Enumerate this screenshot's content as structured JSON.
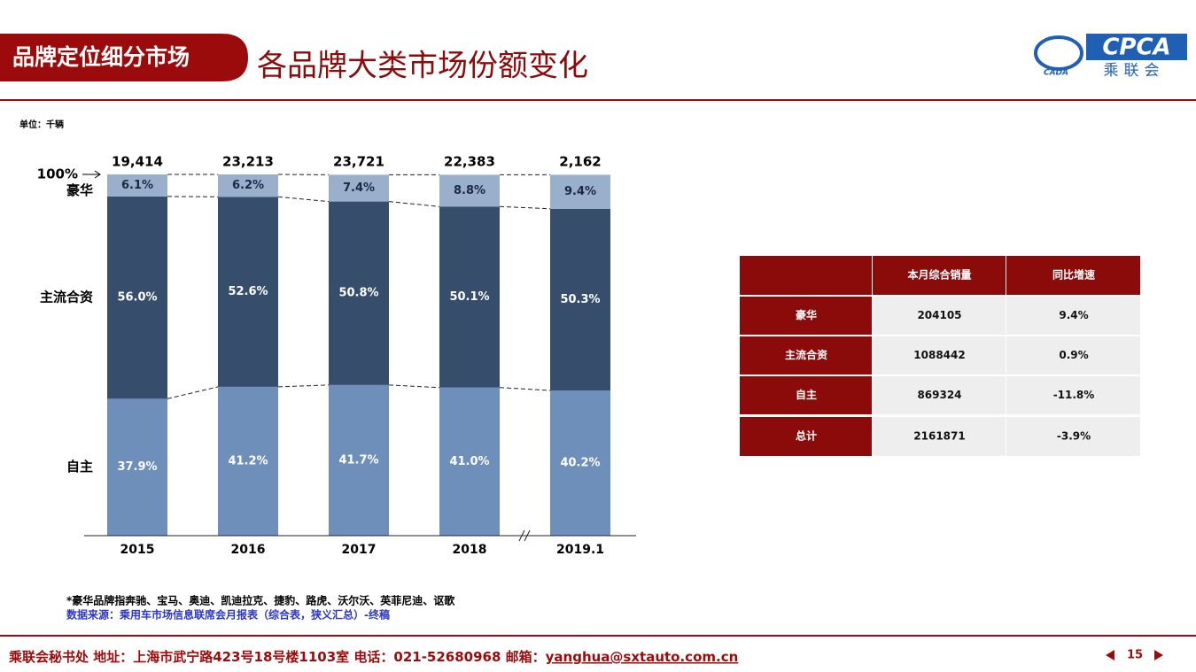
{
  "header": {
    "tag": "品牌定位细分市场",
    "title": "各品牌大类市场份额变化",
    "logo": {
      "mark": "CADA",
      "name": "CPCA",
      "cn": "乘联会"
    }
  },
  "unit": "单位：千辆",
  "chart_data": {
    "type": "stacked-bar",
    "categories": [
      "2015",
      "2016",
      "2017",
      "2018",
      "2019.1"
    ],
    "series": [
      {
        "name": "自主",
        "color": "#6f8fbb",
        "values": [
          37.9,
          41.2,
          41.7,
          41.0,
          40.2
        ],
        "value_labels": [
          "37.9%",
          "41.2%",
          "41.7%",
          "41.0%",
          "40.2%"
        ]
      },
      {
        "name": "主流合资",
        "color": "#364d6c",
        "values": [
          56.0,
          52.6,
          50.8,
          50.1,
          50.3
        ],
        "value_labels": [
          "56.0%",
          "52.6%",
          "50.8%",
          "50.1%",
          "50.3%"
        ]
      },
      {
        "name": "豪华",
        "color": "#9aafcc",
        "values": [
          6.1,
          6.2,
          7.4,
          8.8,
          9.4
        ],
        "value_labels": [
          "6.1%",
          "6.2%",
          "7.4%",
          "8.8%",
          "9.4%"
        ]
      }
    ],
    "totals": {
      "values": [
        19414,
        23213,
        23721,
        22383,
        2162
      ],
      "value_labels": [
        "19,414",
        "23,213",
        "23,721",
        "22,383",
        "2,162"
      ]
    },
    "ylim": [
      0,
      100
    ],
    "yticks": [
      {
        "value": 100,
        "label": "100%"
      }
    ]
  },
  "table": {
    "header": [
      "本月综合销量",
      "同比增速"
    ],
    "rows": [
      [
        "豪华",
        "204105",
        "9.4%"
      ],
      [
        "主流合资",
        "1088442",
        "0.9%"
      ],
      [
        "自主",
        "869324",
        "-11.8%"
      ],
      [
        "总计",
        "2161871",
        "-3.9%"
      ]
    ]
  },
  "notes": [
    "*豪华品牌指奔驰、宝马、奥迪、凯迪拉克、捷豹、路虎、沃尔沃、英菲尼迪、讴歌",
    "数据来源：乘用车市场信息联席会月报表（综合表，狭义汇总）-终稿"
  ],
  "footer": {
    "text": "乘联会秘书处   地址：上海市武宁路423号18号楼1103室  电话：021-52680968   邮箱：",
    "email": "yanghua@sxtauto.com.cn",
    "page": "15"
  }
}
